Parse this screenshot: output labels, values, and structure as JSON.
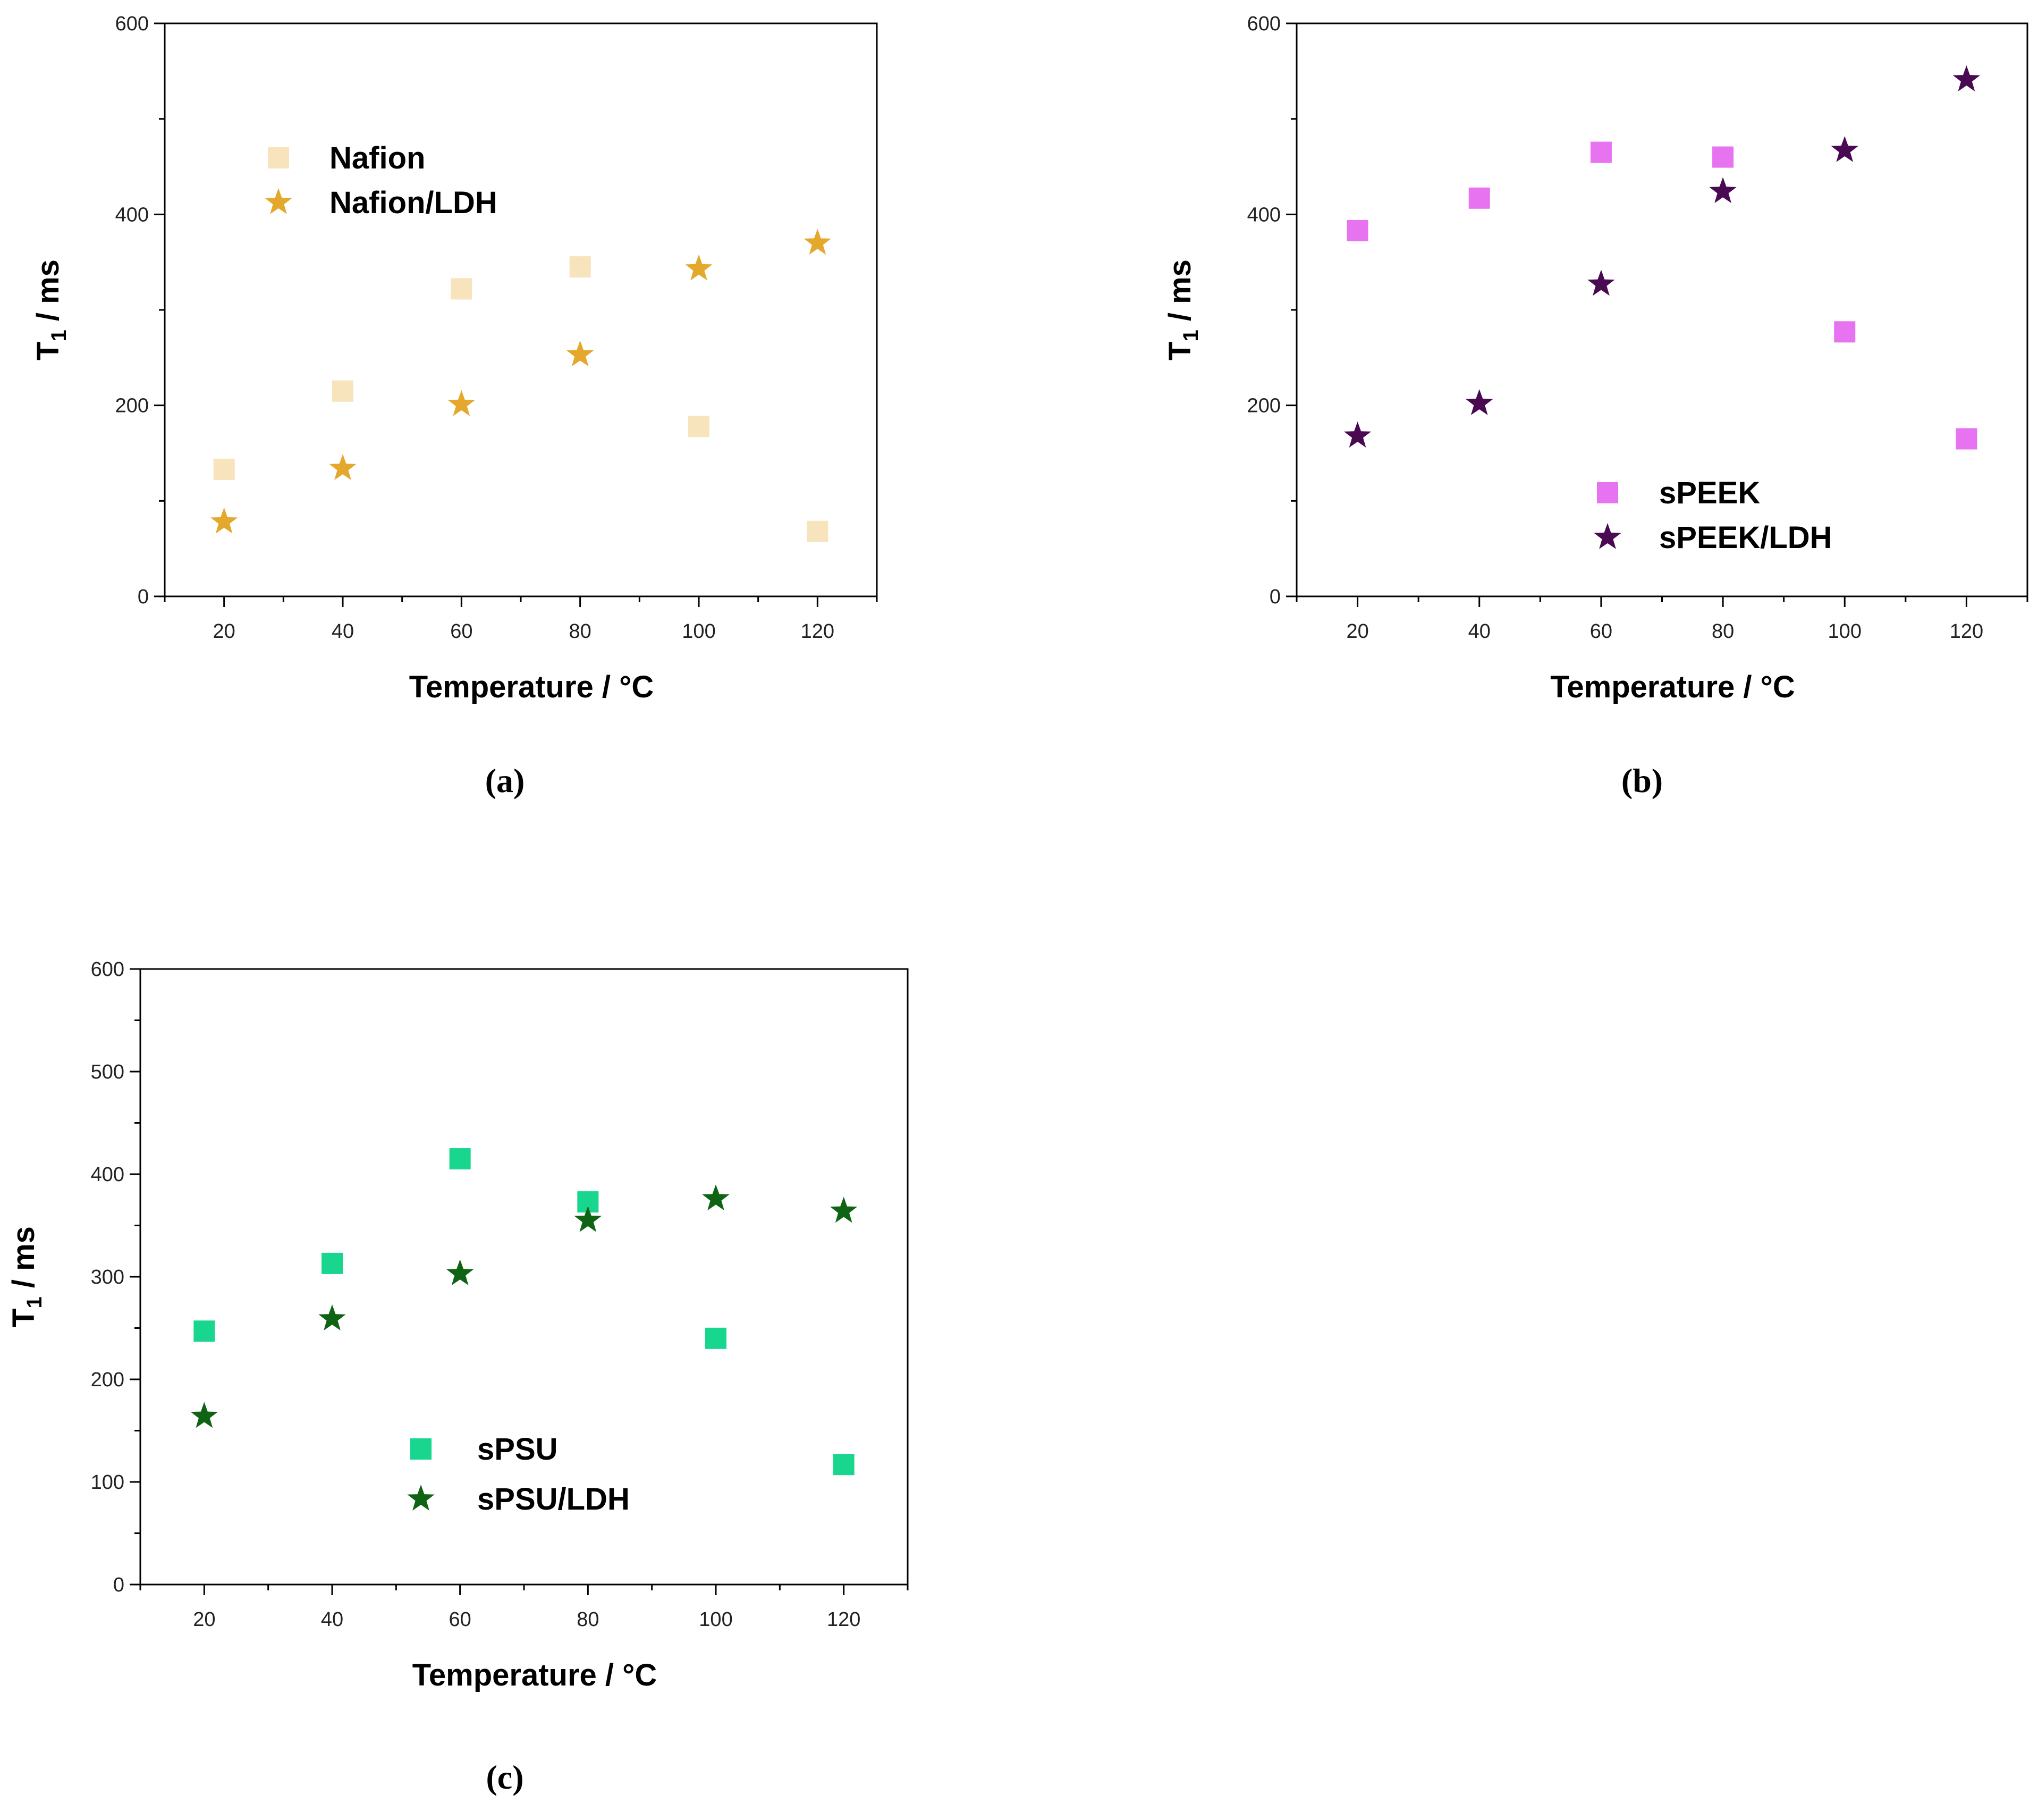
{
  "chart_data": [
    {
      "panel": "(a)",
      "type": "scatter",
      "xlabel": "Temperature / °C",
      "ylabel": "T",
      "ylabel_sub": "1",
      "ylabel_unit": " / ms",
      "xlim": [
        10,
        130
      ],
      "ylim": [
        0,
        600
      ],
      "xticks": [
        20,
        40,
        60,
        80,
        100,
        120
      ],
      "yticks": [
        0,
        200,
        400,
        600
      ],
      "legend_position": "top-left",
      "series": [
        {
          "name": "Nafion",
          "marker": "square",
          "color": "#f7e3bc",
          "x": [
            20,
            40,
            60,
            80,
            100,
            120
          ],
          "y": [
            133,
            215,
            322,
            345,
            178,
            68
          ]
        },
        {
          "name": "Nafion/LDH",
          "marker": "star",
          "color": "#e4a92c",
          "x": [
            20,
            40,
            60,
            80,
            100,
            120
          ],
          "y": [
            78,
            134,
            201,
            253,
            343,
            370
          ]
        }
      ]
    },
    {
      "panel": "(b)",
      "type": "scatter",
      "xlabel": "Temperature / °C",
      "ylabel": "T",
      "ylabel_sub": "1",
      "ylabel_unit": " / ms",
      "xlim": [
        10,
        130
      ],
      "ylim": [
        0,
        600
      ],
      "xticks": [
        20,
        40,
        60,
        80,
        100,
        120
      ],
      "yticks": [
        0,
        200,
        400,
        600
      ],
      "legend_position": "bottom-center",
      "series": [
        {
          "name": "sPEEK",
          "marker": "square",
          "color": "#e873f0",
          "x": [
            20,
            40,
            60,
            80,
            100,
            120
          ],
          "y": [
            383,
            417,
            465,
            460,
            277,
            165
          ]
        },
        {
          "name": "sPEEK/LDH",
          "marker": "star",
          "color": "#4a0a52",
          "x": [
            20,
            40,
            60,
            80,
            100,
            120
          ],
          "y": [
            168,
            202,
            327,
            424,
            467,
            541
          ]
        }
      ]
    },
    {
      "panel": "(c)",
      "type": "scatter",
      "xlabel": "Temperature / °C",
      "ylabel": "T",
      "ylabel_sub": "1",
      "ylabel_unit": " / ms",
      "xlim": [
        10,
        130
      ],
      "ylim": [
        0,
        600
      ],
      "xticks": [
        20,
        40,
        60,
        80,
        100,
        120
      ],
      "yticks": [
        0,
        100,
        200,
        300,
        400,
        500,
        600
      ],
      "legend_position": "bottom-center",
      "series": [
        {
          "name": "sPSU",
          "marker": "square",
          "color": "#19d68f",
          "x": [
            20,
            40,
            60,
            80,
            100,
            120
          ],
          "y": [
            247,
            313,
            415,
            373,
            240,
            117
          ]
        },
        {
          "name": "sPSU/LDH",
          "marker": "star",
          "color": "#0f6414",
          "x": [
            20,
            40,
            60,
            80,
            100,
            120
          ],
          "y": [
            164,
            259,
            303,
            355,
            376,
            364
          ]
        }
      ]
    }
  ]
}
